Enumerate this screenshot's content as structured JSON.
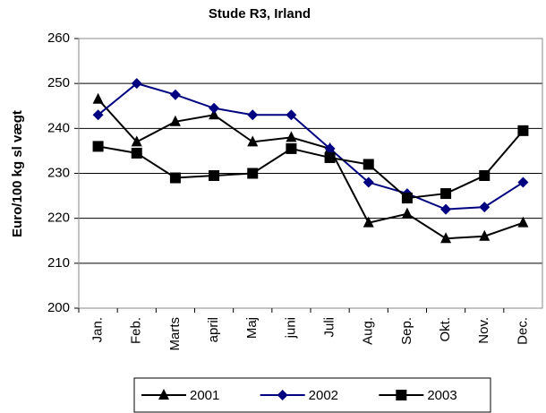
{
  "chart_data": {
    "type": "line",
    "title": "Stude R3, Irland",
    "y_label": "Euro/100 kg sl vægt",
    "categories": [
      "Jan.",
      "Feb.",
      "Marts",
      "april",
      "Maj",
      "juni",
      "Juli",
      "Aug.",
      "Sep.",
      "Okt.",
      "Nov.",
      "Dec."
    ],
    "series": [
      {
        "name": "2001",
        "color": "#000000",
        "marker": "triangle",
        "values": [
          246.5,
          237,
          241.5,
          243,
          237,
          238,
          235.5,
          219,
          221,
          215.5,
          216,
          219
        ]
      },
      {
        "name": "2002",
        "color": "#000080",
        "marker": "diamond",
        "values": [
          243,
          250,
          247.5,
          244.5,
          243,
          243,
          235.5,
          228,
          225.5,
          222,
          222.5,
          228
        ]
      },
      {
        "name": "2003",
        "color": "#000000",
        "marker": "square",
        "values": [
          236,
          234.5,
          229,
          229.5,
          230,
          235.5,
          233.5,
          232,
          224.5,
          225.5,
          229.5,
          239.5
        ]
      }
    ],
    "ylim": [
      200,
      260
    ],
    "yticks": [
      200,
      210,
      220,
      230,
      240,
      250,
      260
    ],
    "grid": true,
    "legend": "bottom"
  }
}
